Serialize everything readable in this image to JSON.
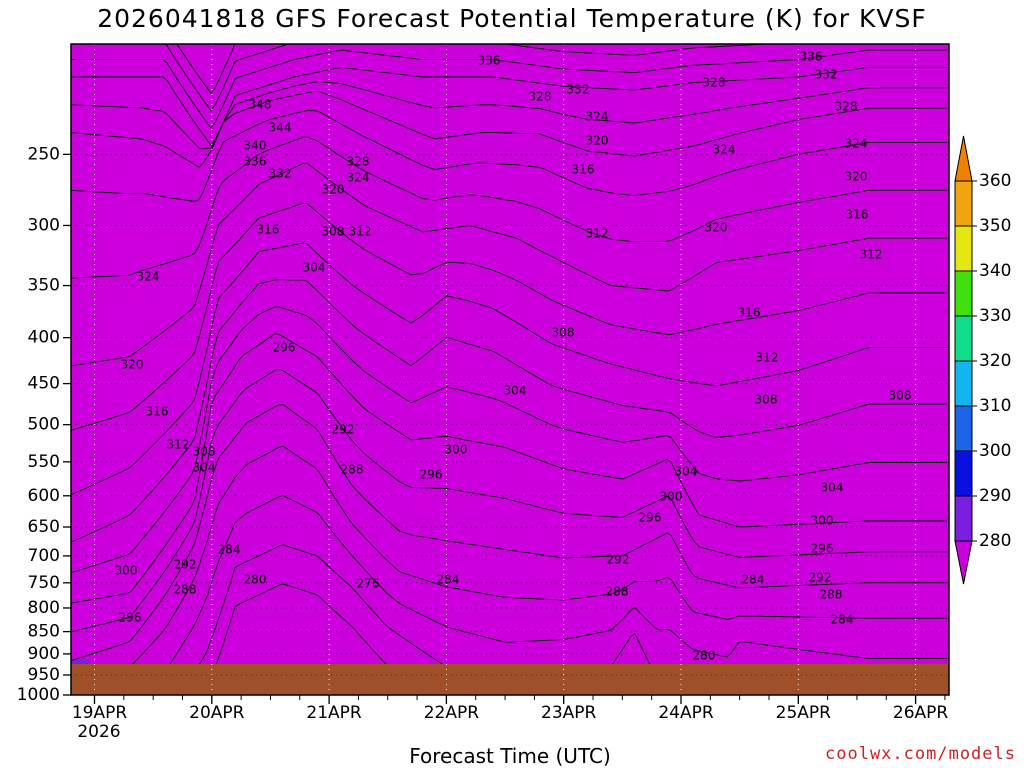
{
  "title": "2026041818 GFS Forecast Potential Temperature (K) for KVSF",
  "xlabel": "Forecast Time (UTC)",
  "credit": "coolwx.com/models",
  "year_label": "2026",
  "chart_data": {
    "type": "contour",
    "variable": "Potential Temperature",
    "units": "K",
    "station": "KVSF",
    "model": "GFS",
    "init": "2026041818",
    "x_ticks": [
      "19APR",
      "20APR",
      "21APR",
      "22APR",
      "23APR",
      "24APR",
      "25APR",
      "26APR"
    ],
    "y_ticks": [
      250,
      300,
      350,
      400,
      450,
      500,
      550,
      600,
      650,
      700,
      750,
      800,
      850,
      900,
      950,
      1000
    ],
    "y_scale": "log-pressure (reversed)",
    "ylim": [
      1000,
      200
    ],
    "colorbar_levels": [
      280,
      290,
      300,
      310,
      320,
      330,
      340,
      350,
      360
    ],
    "colorbar_colors": [
      "#cc00dd",
      "#7a1ee0",
      "#0a10e0",
      "#1e64e6",
      "#14b4f0",
      "#10dc8c",
      "#40e010",
      "#e6e610",
      "#f0a410",
      "#f08000"
    ],
    "contour_labels": [
      "348",
      "344",
      "340",
      "336",
      "332",
      "328",
      "324",
      "320",
      "316",
      "312",
      "308",
      "304",
      "300",
      "296",
      "292",
      "288",
      "284",
      "280",
      "276"
    ],
    "grid": true,
    "ground_color": "#a05028"
  }
}
